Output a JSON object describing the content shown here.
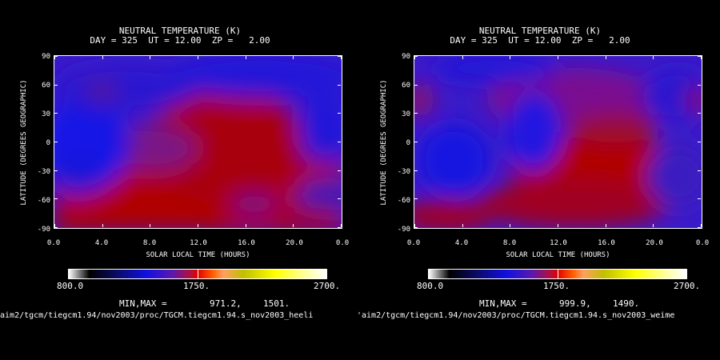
{
  "panels": [
    {
      "title": "NEUTRAL TEMPERATURE (K)",
      "subtitle": "DAY = 325  UT = 12.00  ZP =   2.00",
      "ylabel": "LATITUDE (DEGREES GEOGRAPHIC)",
      "xlabel": "SOLAR LOCAL TIME (HOURS)",
      "cbar_min": "800.0",
      "cbar_mid": "1750.",
      "cbar_max": "2700.",
      "minmax_label": "MIN,MAX =",
      "min_value": "971.2,",
      "max_value": "1501.",
      "path": "/aim2/tgcm/tiegcm1.94/nov2003/proc/TGCM.tiegcm1.94.s_nov2003_heeli"
    },
    {
      "title": "NEUTRAL TEMPERATURE (K)",
      "subtitle": "DAY = 325  UT = 12.00  ZP =   2.00",
      "ylabel": "LATITUDE (DEGREES GEOGRAPHIC)",
      "xlabel": "SOLAR LOCAL TIME (HOURS)",
      "cbar_min": "800.0",
      "cbar_mid": "1750.",
      "cbar_max": "2700.",
      "minmax_label": "MIN,MAX =",
      "min_value": "999.9,",
      "max_value": "1490.",
      "path": "'aim2/tgcm/tiegcm1.94/nov2003/proc/TGCM.tiegcm1.94.s_nov2003_weime"
    }
  ],
  "colors": {
    "background": "#000000",
    "cold": "#1010e0",
    "mid": "#5a1aa0",
    "warm": "#b40000"
  },
  "chart_data": [
    {
      "type": "heatmap",
      "title": "NEUTRAL TEMPERATURE (K)",
      "subtitle": "DAY = 325  UT = 12.00  ZP =   2.00",
      "xlabel": "SOLAR LOCAL TIME (HOURS)",
      "ylabel": "LATITUDE (DEGREES GEOGRAPHIC)",
      "x_ticks": [
        "0.0",
        "4.0",
        "8.0",
        "12.0",
        "16.0",
        "20.0",
        "0.0"
      ],
      "y_ticks": [
        "-90",
        "-60",
        "-30",
        "0",
        "30",
        "60",
        "90"
      ],
      "xlim": [
        0,
        24
      ],
      "ylim": [
        -90,
        90
      ],
      "colorbar": {
        "min": 800.0,
        "max": 2700.0,
        "labels": [
          "800.0",
          "1750.",
          "2700."
        ]
      },
      "min": 971.2,
      "max": 1501.0
    },
    {
      "type": "heatmap",
      "title": "NEUTRAL TEMPERATURE (K)",
      "subtitle": "DAY = 325  UT = 12.00  ZP =   2.00",
      "xlabel": "SOLAR LOCAL TIME (HOURS)",
      "ylabel": "LATITUDE (DEGREES GEOGRAPHIC)",
      "x_ticks": [
        "0.0",
        "4.0",
        "8.0",
        "12.0",
        "16.0",
        "20.0",
        "0.0"
      ],
      "y_ticks": [
        "-90",
        "-60",
        "-30",
        "0",
        "30",
        "60",
        "90"
      ],
      "xlim": [
        0,
        24
      ],
      "ylim": [
        -90,
        90
      ],
      "colorbar": {
        "min": 800.0,
        "max": 2700.0,
        "labels": [
          "800.0",
          "1750.",
          "2700."
        ]
      },
      "min": 999.9,
      "max": 1490.0
    }
  ]
}
